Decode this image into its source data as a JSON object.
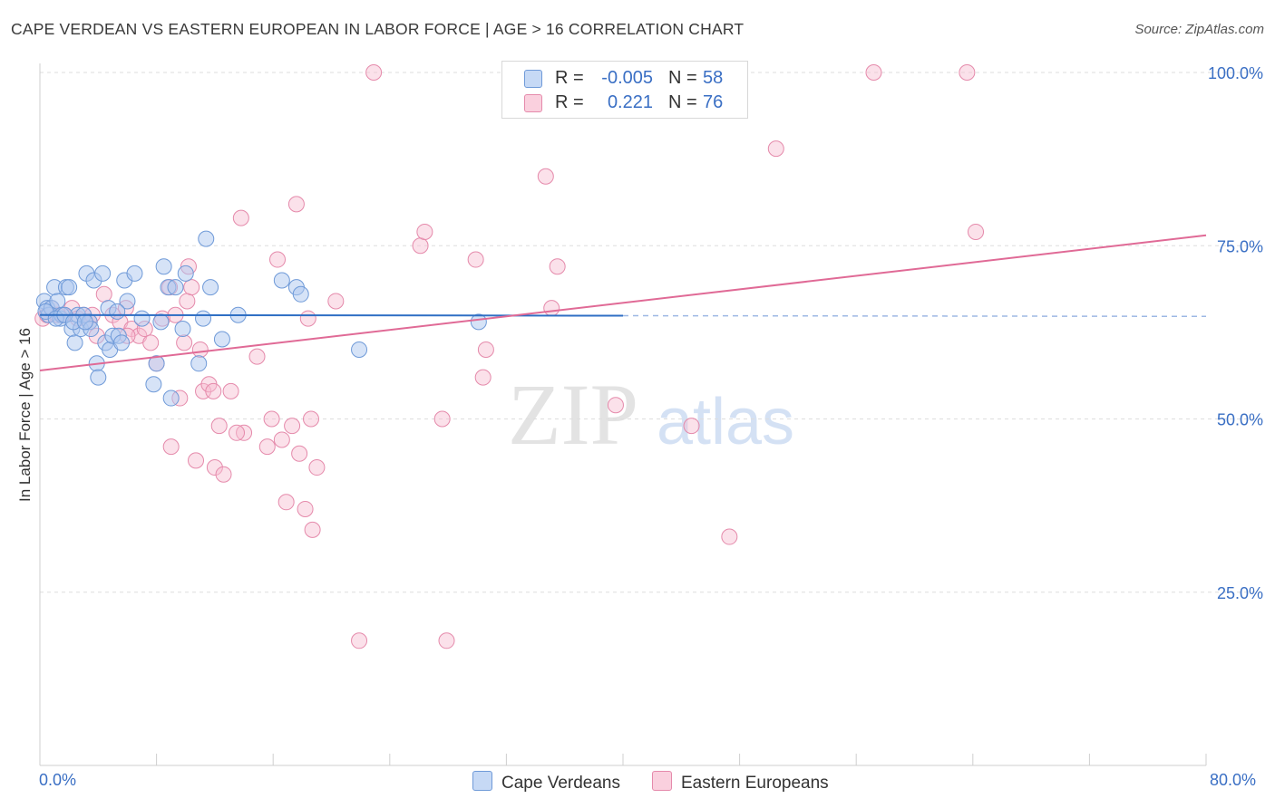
{
  "title": "CAPE VERDEAN VS EASTERN EUROPEAN IN LABOR FORCE | AGE > 16 CORRELATION CHART",
  "source": "Source: ZipAtlas.com",
  "legend_top": {
    "rows": [
      {
        "r_label": "R =",
        "r_value": "-0.005",
        "n_label": "N =",
        "n_value": "58",
        "color": "#aec8f0"
      },
      {
        "r_label": "R =",
        "r_value": "0.221",
        "n_label": "N =",
        "n_value": "76",
        "color": "#f7bcd0"
      }
    ]
  },
  "legend_bottom": {
    "series1": "Cape Verdeans",
    "series2": "Eastern Europeans"
  },
  "watermark": {
    "zip": "ZIP",
    "atlas": "atlas"
  },
  "colors": {
    "blue_fill": "#aec8f0",
    "blue_stroke": "#6f9ad8",
    "blue_line": "#2f6fc4",
    "pink_fill": "#f7bcd0",
    "pink_stroke": "#e58aab",
    "pink_line": "#e06a96",
    "axis_text": "#3a6fc4",
    "grid": "#dddddd"
  },
  "chart_data": {
    "type": "scatter",
    "title": "CAPE VERDEAN VS EASTERN EUROPEAN IN LABOR FORCE | AGE > 16 CORRELATION CHART",
    "xlabel": "",
    "ylabel": "In Labor Force | Age > 16",
    "xlim": [
      0,
      80
    ],
    "ylim": [
      0,
      103
    ],
    "x_tick_labels": [
      "0.0%",
      "80.0%"
    ],
    "y_ticks": [
      25,
      50,
      75,
      100
    ],
    "y_tick_labels": [
      "25.0%",
      "50.0%",
      "75.0%",
      "100.0%"
    ],
    "grid": true,
    "series": [
      {
        "name": "Cape Verdeans",
        "r": -0.005,
        "n": 58,
        "trend": {
          "x0": 0,
          "y0": 65.0,
          "x1": 40,
          "y1": 64.9,
          "dashed_to_x": 80
        },
        "points": [
          [
            0.3,
            67
          ],
          [
            0.5,
            66
          ],
          [
            0.6,
            65
          ],
          [
            0.8,
            66
          ],
          [
            1.0,
            69
          ],
          [
            1.2,
            67
          ],
          [
            1.4,
            64.5
          ],
          [
            1.5,
            65
          ],
          [
            1.8,
            69
          ],
          [
            2.0,
            69
          ],
          [
            2.2,
            63
          ],
          [
            2.4,
            61
          ],
          [
            2.6,
            65
          ],
          [
            2.8,
            63
          ],
          [
            3.0,
            65
          ],
          [
            3.2,
            71
          ],
          [
            3.4,
            64
          ],
          [
            3.5,
            63
          ],
          [
            3.7,
            70
          ],
          [
            3.9,
            58
          ],
          [
            4.0,
            56
          ],
          [
            4.3,
            71
          ],
          [
            4.5,
            61
          ],
          [
            4.7,
            66
          ],
          [
            4.8,
            60
          ],
          [
            5.0,
            62
          ],
          [
            5.4,
            62
          ],
          [
            5.6,
            61
          ],
          [
            5.8,
            70
          ],
          [
            6.0,
            67
          ],
          [
            6.5,
            71
          ],
          [
            7.0,
            64.5
          ],
          [
            7.8,
            55
          ],
          [
            8.0,
            58
          ],
          [
            8.3,
            64
          ],
          [
            8.5,
            72
          ],
          [
            8.8,
            69
          ],
          [
            9.0,
            53
          ],
          [
            9.3,
            69
          ],
          [
            9.8,
            63
          ],
          [
            10.0,
            71
          ],
          [
            10.9,
            58
          ],
          [
            11.4,
            76
          ],
          [
            11.2,
            64.5
          ],
          [
            11.7,
            69
          ],
          [
            12.5,
            61.5
          ],
          [
            13.6,
            65
          ],
          [
            16.6,
            70
          ],
          [
            17.6,
            69
          ],
          [
            17.9,
            68
          ],
          [
            21.9,
            60
          ],
          [
            30.1,
            64
          ],
          [
            0.4,
            65.5
          ],
          [
            1.1,
            64.5
          ],
          [
            1.7,
            65
          ],
          [
            2.3,
            64
          ],
          [
            3.1,
            64
          ],
          [
            5.3,
            65.5
          ]
        ]
      },
      {
        "name": "Eastern Europeans",
        "r": 0.221,
        "n": 76,
        "trend": {
          "x0": 0,
          "y0": 57.0,
          "x1": 80,
          "y1": 76.5
        },
        "points": [
          [
            0.2,
            64.5
          ],
          [
            0.5,
            65
          ],
          [
            0.8,
            66
          ],
          [
            1.2,
            65
          ],
          [
            1.6,
            65
          ],
          [
            2.2,
            66
          ],
          [
            2.6,
            64.5
          ],
          [
            3.0,
            65
          ],
          [
            3.4,
            64
          ],
          [
            3.6,
            65
          ],
          [
            3.9,
            62
          ],
          [
            4.4,
            68
          ],
          [
            5.0,
            65
          ],
          [
            5.5,
            64
          ],
          [
            5.9,
            66
          ],
          [
            6.3,
            63
          ],
          [
            6.8,
            62
          ],
          [
            7.2,
            63
          ],
          [
            7.6,
            61
          ],
          [
            8.0,
            58
          ],
          [
            8.4,
            64.5
          ],
          [
            8.9,
            69
          ],
          [
            9.0,
            46
          ],
          [
            9.3,
            65
          ],
          [
            9.6,
            53
          ],
          [
            10.1,
            67
          ],
          [
            10.2,
            72
          ],
          [
            10.4,
            69
          ],
          [
            10.7,
            44
          ],
          [
            11.0,
            60
          ],
          [
            11.2,
            54
          ],
          [
            11.6,
            55
          ],
          [
            11.9,
            54
          ],
          [
            12.0,
            43
          ],
          [
            12.3,
            49
          ],
          [
            12.6,
            42
          ],
          [
            13.1,
            54
          ],
          [
            13.8,
            79
          ],
          [
            14.0,
            48
          ],
          [
            14.9,
            59
          ],
          [
            15.6,
            46
          ],
          [
            15.9,
            50
          ],
          [
            16.3,
            73
          ],
          [
            16.6,
            47
          ],
          [
            16.9,
            38
          ],
          [
            17.3,
            49
          ],
          [
            17.6,
            81
          ],
          [
            17.8,
            45
          ],
          [
            18.2,
            37
          ],
          [
            18.6,
            50
          ],
          [
            18.7,
            34
          ],
          [
            19.0,
            43
          ],
          [
            20.3,
            67
          ],
          [
            21.9,
            18
          ],
          [
            22.9,
            100
          ],
          [
            26.1,
            75
          ],
          [
            26.4,
            77
          ],
          [
            27.6,
            50
          ],
          [
            27.9,
            18
          ],
          [
            29.9,
            73
          ],
          [
            30.4,
            56
          ],
          [
            30.6,
            60
          ],
          [
            34.7,
            85
          ],
          [
            35.1,
            66
          ],
          [
            35.5,
            72
          ],
          [
            39.5,
            52
          ],
          [
            44.7,
            49
          ],
          [
            47.3,
            33
          ],
          [
            50.5,
            89
          ],
          [
            57.2,
            100
          ],
          [
            63.6,
            100
          ],
          [
            64.2,
            77
          ],
          [
            9.9,
            61
          ],
          [
            6.0,
            62
          ],
          [
            13.5,
            48
          ],
          [
            18.4,
            64.5
          ]
        ]
      }
    ]
  }
}
